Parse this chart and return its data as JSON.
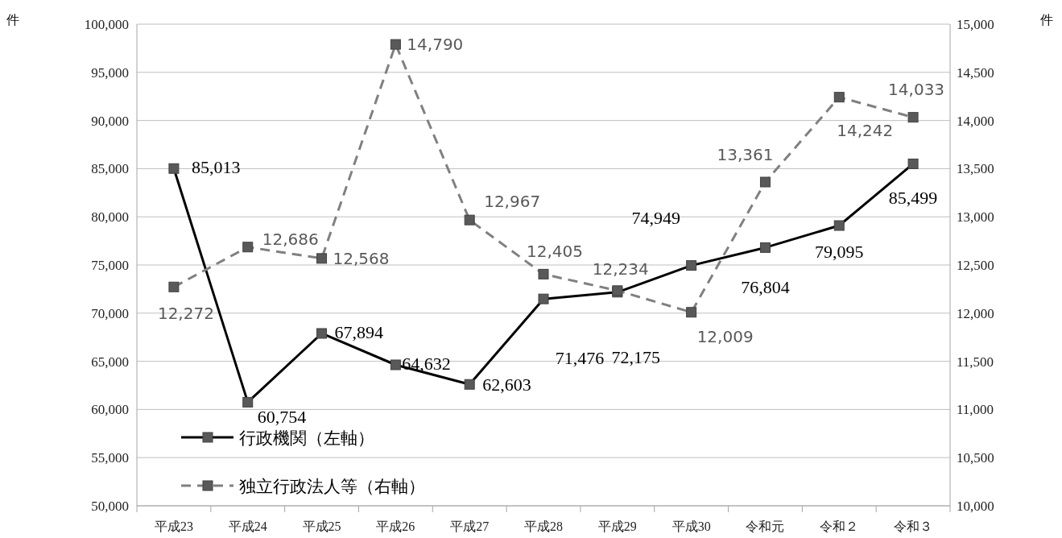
{
  "chart_data": {
    "type": "line",
    "annotations": [
      "件",
      "件"
    ],
    "categories": [
      "平成23",
      "平成24",
      "平成25",
      "平成26",
      "平成27",
      "平成28",
      "平成29",
      "平成30",
      "令和元",
      "令和２",
      "令和３"
    ],
    "series": [
      {
        "name": "行政機関（左軸）",
        "color": "#000000",
        "line_style": "solid",
        "values": [
          85013,
          60754,
          67894,
          64632,
          62603,
          71476,
          72175,
          74949,
          76804,
          79095,
          85499
        ],
        "value_labels": [
          "85,013",
          "60,754",
          "67,894",
          "64,632",
          "62,603",
          "71,476",
          "72,175",
          "74,949",
          "76,804",
          "79,095",
          "85,499"
        ]
      },
      {
        "name": "独立行政法人等（右軸）",
        "color": "#808080",
        "line_style": "dashed",
        "axis": "y2",
        "values": [
          12272,
          12686,
          12568,
          14790,
          12967,
          12405,
          12234,
          12009,
          13361,
          14242,
          14033
        ],
        "value_labels": [
          "12,272",
          "12,686",
          "12,568",
          "14,790",
          "12,967",
          "12,405",
          "12,234",
          "12,009",
          "13,361",
          "14,242",
          "14,033"
        ]
      }
    ],
    "ylim": [
      50000,
      100000
    ],
    "yticks": [
      {
        "value": 50000,
        "label": "50,000"
      },
      {
        "value": 55000,
        "label": "55,000"
      },
      {
        "value": 60000,
        "label": "60,000"
      },
      {
        "value": 65000,
        "label": "65,000"
      },
      {
        "value": 70000,
        "label": "70,000"
      },
      {
        "value": 75000,
        "label": "75,000"
      },
      {
        "value": 80000,
        "label": "80,000"
      },
      {
        "value": 85000,
        "label": "85,000"
      },
      {
        "value": 90000,
        "label": "90,000"
      },
      {
        "value": 95000,
        "label": "95,000"
      },
      {
        "value": 100000,
        "label": "100,000"
      }
    ],
    "y2lim": [
      10000,
      15000
    ],
    "y2ticks": [
      {
        "value": 10000,
        "label": "10,000"
      },
      {
        "value": 10500,
        "label": "10,500"
      },
      {
        "value": 11000,
        "label": "11,000"
      },
      {
        "value": 11500,
        "label": "11,500"
      },
      {
        "value": 12000,
        "label": "12,000"
      },
      {
        "value": 12500,
        "label": "12,500"
      },
      {
        "value": 13000,
        "label": "13,000"
      },
      {
        "value": 13500,
        "label": "13,500"
      },
      {
        "value": 14000,
        "label": "14,000"
      },
      {
        "value": 14500,
        "label": "14,500"
      },
      {
        "value": 15000,
        "label": "15,000"
      }
    ],
    "grid": "y",
    "legend": "bottom left",
    "marker": "square"
  }
}
